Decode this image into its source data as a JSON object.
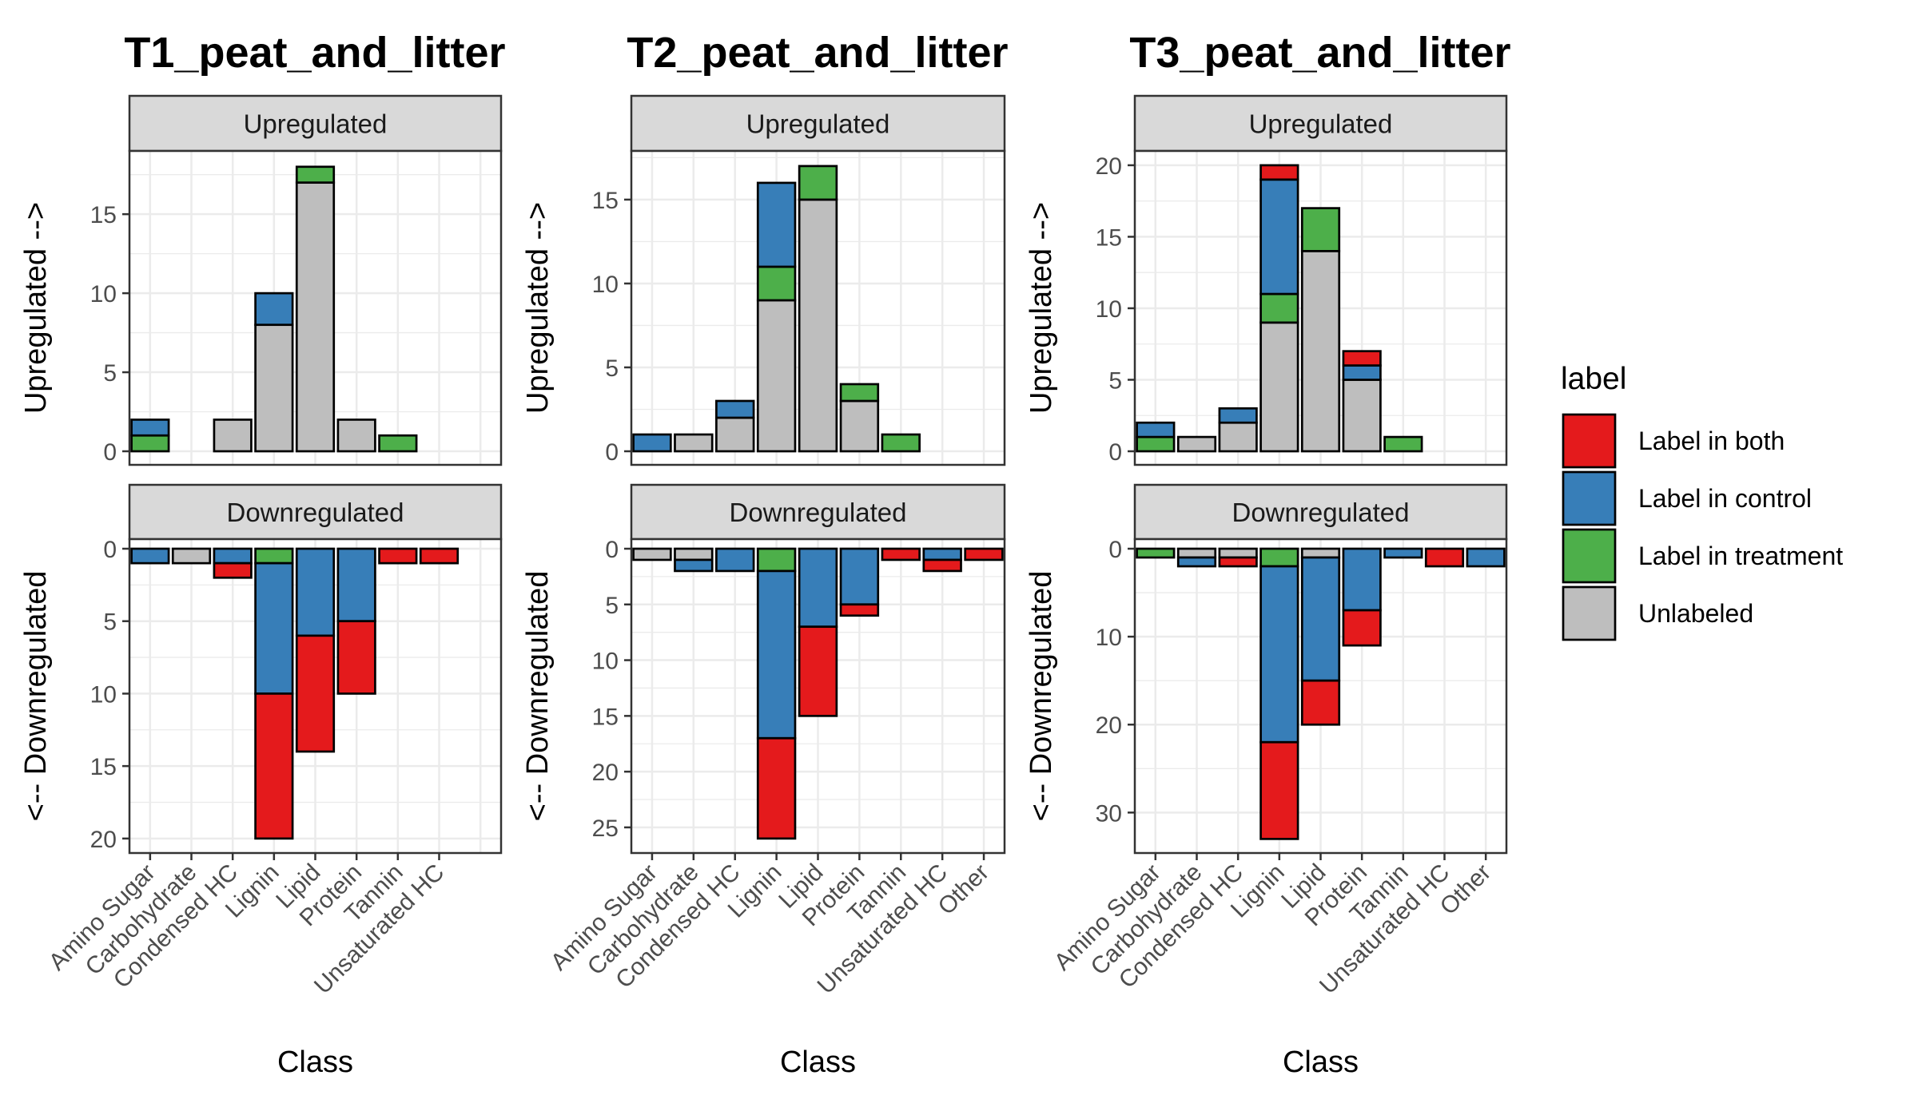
{
  "legend": {
    "title": "label",
    "items": [
      {
        "key": "both",
        "label": "Label in both",
        "color": "#E41A1C"
      },
      {
        "key": "control",
        "label": "Label in control",
        "color": "#377EB8"
      },
      {
        "key": "treatment",
        "label": "Label in treatment",
        "color": "#4DAF4A"
      },
      {
        "key": "unlabeled",
        "label": "Unlabeled",
        "color": "#BEBEBE"
      }
    ]
  },
  "strips": {
    "up": "Upregulated",
    "down": "Downregulated"
  },
  "ylabels": {
    "up": "Upregulated -->",
    "down": "<-- Downregulated"
  },
  "xlabel": "Class",
  "chart_data": [
    {
      "type": "bar",
      "stacked": true,
      "title": "T1_peat_and_litter",
      "xlabel": "Class",
      "categories": [
        "Amino Sugar",
        "Carbohydrate",
        "Condensed HC",
        "Lignin",
        "Lipid",
        "Protein",
        "Tannin",
        "Unsaturated HC"
      ],
      "upregulated": {
        "ylabel": "Upregulated -->",
        "ylim": [
          0,
          19
        ],
        "yticks": [
          0,
          5,
          10,
          15
        ],
        "series": [
          {
            "name": "Unlabeled",
            "key": "unlabeled",
            "values": [
              0,
              0,
              2,
              8,
              17,
              2,
              0,
              0
            ]
          },
          {
            "name": "Label in treatment",
            "key": "treatment",
            "values": [
              1,
              0,
              0,
              0,
              1,
              0,
              1,
              0
            ]
          },
          {
            "name": "Label in control",
            "key": "control",
            "values": [
              1,
              0,
              0,
              2,
              0,
              0,
              0,
              0
            ]
          },
          {
            "name": "Label in both",
            "key": "both",
            "values": [
              0,
              0,
              0,
              0,
              0,
              0,
              0,
              0
            ]
          }
        ]
      },
      "downregulated": {
        "ylabel": "<-- Downregulated",
        "ylim": [
          0,
          21
        ],
        "yticks": [
          0,
          5,
          10,
          15,
          20
        ],
        "series": [
          {
            "name": "Unlabeled",
            "key": "unlabeled",
            "values": [
              0,
              1,
              0,
              0,
              0,
              0,
              0,
              0
            ]
          },
          {
            "name": "Label in treatment",
            "key": "treatment",
            "values": [
              0,
              0,
              0,
              1,
              0,
              0,
              0,
              0
            ]
          },
          {
            "name": "Label in control",
            "key": "control",
            "values": [
              1,
              0,
              1,
              9,
              6,
              5,
              0,
              0
            ]
          },
          {
            "name": "Label in both",
            "key": "both",
            "values": [
              0,
              0,
              1,
              10,
              8,
              5,
              1,
              1
            ]
          }
        ]
      }
    },
    {
      "type": "bar",
      "stacked": true,
      "title": "T2_peat_and_litter",
      "xlabel": "Class",
      "categories": [
        "Amino Sugar",
        "Carbohydrate",
        "Condensed HC",
        "Lignin",
        "Lipid",
        "Protein",
        "Tannin",
        "Unsaturated HC",
        "Other"
      ],
      "upregulated": {
        "ylabel": "Upregulated -->",
        "ylim": [
          0,
          17.9
        ],
        "yticks": [
          0,
          5,
          10,
          15
        ],
        "series": [
          {
            "name": "Unlabeled",
            "key": "unlabeled",
            "values": [
              0,
              1,
              2,
              9,
              15,
              3,
              0,
              0,
              0
            ]
          },
          {
            "name": "Label in treatment",
            "key": "treatment",
            "values": [
              0,
              0,
              0,
              2,
              2,
              1,
              1,
              0,
              0
            ]
          },
          {
            "name": "Label in control",
            "key": "control",
            "values": [
              1,
              0,
              1,
              5,
              0,
              0,
              0,
              0,
              0
            ]
          },
          {
            "name": "Label in both",
            "key": "both",
            "values": [
              0,
              0,
              0,
              0,
              0,
              0,
              0,
              0,
              0
            ]
          }
        ]
      },
      "downregulated": {
        "ylabel": "<-- Downregulated",
        "ylim": [
          0,
          27.3
        ],
        "yticks": [
          0,
          5,
          10,
          15,
          20,
          25
        ],
        "series": [
          {
            "name": "Unlabeled",
            "key": "unlabeled",
            "values": [
              1,
              1,
              0,
              0,
              0,
              0,
              0,
              0,
              0
            ]
          },
          {
            "name": "Label in treatment",
            "key": "treatment",
            "values": [
              0,
              0,
              0,
              2,
              0,
              0,
              0,
              0,
              0
            ]
          },
          {
            "name": "Label in control",
            "key": "control",
            "values": [
              0,
              1,
              2,
              15,
              7,
              5,
              0,
              1,
              0
            ]
          },
          {
            "name": "Label in both",
            "key": "both",
            "values": [
              0,
              0,
              0,
              9,
              8,
              1,
              1,
              1,
              1
            ]
          }
        ]
      }
    },
    {
      "type": "bar",
      "stacked": true,
      "title": "T3_peat_and_litter",
      "xlabel": "Class",
      "categories": [
        "Amino Sugar",
        "Carbohydrate",
        "Condensed HC",
        "Lignin",
        "Lipid",
        "Protein",
        "Tannin",
        "Unsaturated HC",
        "Other"
      ],
      "upregulated": {
        "ylabel": "Upregulated -->",
        "ylim": [
          0,
          21
        ],
        "yticks": [
          0,
          5,
          10,
          15,
          20
        ],
        "series": [
          {
            "name": "Unlabeled",
            "key": "unlabeled",
            "values": [
              0,
              1,
              2,
              9,
              14,
              5,
              0,
              0,
              0
            ]
          },
          {
            "name": "Label in treatment",
            "key": "treatment",
            "values": [
              1,
              0,
              0,
              2,
              3,
              0,
              1,
              0,
              0
            ]
          },
          {
            "name": "Label in control",
            "key": "control",
            "values": [
              1,
              0,
              1,
              8,
              0,
              1,
              0,
              0,
              0
            ]
          },
          {
            "name": "Label in both",
            "key": "both",
            "values": [
              0,
              0,
              0,
              1,
              0,
              1,
              0,
              0,
              0
            ]
          }
        ]
      },
      "downregulated": {
        "ylabel": "<-- Downregulated",
        "ylim": [
          0,
          34.6
        ],
        "yticks": [
          0,
          10,
          20,
          30
        ],
        "series": [
          {
            "name": "Unlabeled",
            "key": "unlabeled",
            "values": [
              0,
              1,
              1,
              0,
              1,
              0,
              0,
              0,
              0
            ]
          },
          {
            "name": "Label in treatment",
            "key": "treatment",
            "values": [
              1,
              0,
              0,
              2,
              0,
              0,
              0,
              0,
              0
            ]
          },
          {
            "name": "Label in control",
            "key": "control",
            "values": [
              0,
              1,
              0,
              20,
              14,
              7,
              1,
              0,
              2
            ]
          },
          {
            "name": "Label in both",
            "key": "both",
            "values": [
              0,
              0,
              1,
              11,
              5,
              4,
              0,
              2,
              0
            ]
          }
        ]
      }
    }
  ]
}
